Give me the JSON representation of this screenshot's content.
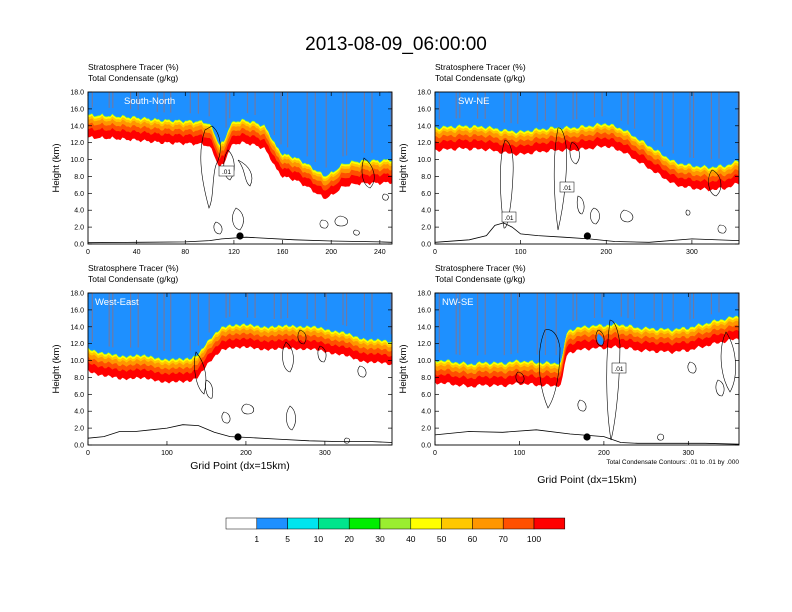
{
  "title": "2013-08-09_06:00:00",
  "subtitle_line1": "Stratosphere Tracer   (%)",
  "subtitle_line2": "Total Condensate   (g/kg)",
  "ylabel": "Height (km)",
  "xlabel": "Grid Point (dx=15km)",
  "contour_note": "Total Condensate Contours: .01 to .01 by .000",
  "contour_label": ".01",
  "colorbar": {
    "levels": [
      "1",
      "5",
      "10",
      "20",
      "30",
      "40",
      "50",
      "60",
      "70",
      "100"
    ],
    "colors": [
      "#ffffff",
      "#1e90ff",
      "#00e5ee",
      "#00e58c",
      "#00ee00",
      "#9aee30",
      "#ffff00",
      "#ffc800",
      "#ff9600",
      "#ff5000",
      "#ff0000"
    ]
  },
  "chart_data": [
    {
      "type": "contour",
      "panel": "South-North",
      "xlim": [
        0,
        250
      ],
      "xticks": [
        "0",
        "40",
        "80",
        "120",
        "160",
        "200",
        "240"
      ],
      "xtick_values": [
        0,
        40,
        80,
        120,
        160,
        200,
        240
      ],
      "ylim": [
        0,
        18
      ],
      "yticks": [
        "0.0",
        "2.0",
        "4.0",
        "6.0",
        "8.0",
        "10.0",
        "12.0",
        "14.0",
        "16.0",
        "18.0"
      ],
      "tropopause_x": [
        0,
        20,
        40,
        60,
        80,
        95,
        100,
        104,
        108,
        112,
        116,
        120,
        126,
        135,
        145,
        150,
        155,
        160,
        170,
        180,
        190,
        195,
        200,
        210,
        220,
        230,
        240,
        250
      ],
      "tropopause_y": [
        15.6,
        15.5,
        15.3,
        15.0,
        14.9,
        14.8,
        14.5,
        13.5,
        12.0,
        12.5,
        14.2,
        14.8,
        15.0,
        14.8,
        14.3,
        13.2,
        11.8,
        11.0,
        10.6,
        9.8,
        8.8,
        8.4,
        8.7,
        9.8,
        10.1,
        10.2,
        10.2,
        10.3
      ],
      "terrain_x": [
        0,
        40,
        80,
        100,
        110,
        130,
        170,
        200,
        240,
        250
      ],
      "terrain_y": [
        0.15,
        0.2,
        0.25,
        0.4,
        0.6,
        0.8,
        0.5,
        0.35,
        0.25,
        0.2
      ],
      "marker_x": 125
    },
    {
      "type": "contour",
      "panel": "SW-NE",
      "xlim": [
        0,
        355
      ],
      "xticks": [
        "0",
        "100",
        "200",
        "300"
      ],
      "xtick_values": [
        0,
        100,
        200,
        300
      ],
      "ylim": [
        0,
        18
      ],
      "yticks": [
        "0.0",
        "2.0",
        "4.0",
        "6.0",
        "8.0",
        "10.0",
        "12.0",
        "14.0",
        "16.0",
        "18.0"
      ],
      "tropopause_x": [
        0,
        30,
        60,
        80,
        100,
        120,
        140,
        160,
        180,
        200,
        220,
        240,
        260,
        280,
        300,
        320,
        340,
        355
      ],
      "tropopause_y": [
        14.1,
        14.3,
        14.2,
        13.8,
        13.6,
        13.9,
        14.1,
        14.1,
        14.3,
        14.6,
        13.9,
        12.6,
        11.3,
        10.0,
        9.6,
        9.4,
        9.6,
        10.2
      ],
      "terrain_x": [
        0,
        40,
        60,
        70,
        80,
        90,
        100,
        120,
        150,
        180,
        210,
        250,
        300,
        355
      ],
      "terrain_y": [
        0.2,
        0.5,
        1.0,
        2.2,
        2.5,
        2.0,
        1.2,
        1.0,
        0.8,
        0.6,
        0.3,
        0.2,
        0.6,
        0.4
      ],
      "marker_x": 178
    },
    {
      "type": "contour",
      "panel": "West-East",
      "xlim": [
        0,
        385
      ],
      "xticks": [
        "0",
        "100",
        "200",
        "300"
      ],
      "xtick_values": [
        0,
        100,
        200,
        300
      ],
      "ylim": [
        0,
        18
      ],
      "yticks": [
        "0.0",
        "2.0",
        "4.0",
        "6.0",
        "8.0",
        "10.0",
        "12.0",
        "14.0",
        "16.0",
        "18.0"
      ],
      "tropopause_x": [
        0,
        20,
        40,
        60,
        80,
        100,
        120,
        130,
        140,
        150,
        160,
        170,
        180,
        200,
        220,
        240,
        260,
        280,
        300,
        320,
        340,
        360,
        385
      ],
      "tropopause_y": [
        11.8,
        11.2,
        10.8,
        11.0,
        10.7,
        10.5,
        10.4,
        10.6,
        11.2,
        12.4,
        13.3,
        14.3,
        14.6,
        14.5,
        14.4,
        14.3,
        14.5,
        14.3,
        14.1,
        13.7,
        13.1,
        12.8,
        12.5
      ],
      "terrain_x": [
        0,
        20,
        40,
        60,
        80,
        100,
        120,
        140,
        160,
        180,
        200,
        240,
        280,
        320,
        360,
        385
      ],
      "terrain_y": [
        0.8,
        1.0,
        1.6,
        1.6,
        1.8,
        2.0,
        2.4,
        2.3,
        1.5,
        1.0,
        0.9,
        0.7,
        0.5,
        0.4,
        0.4,
        0.3
      ],
      "marker_x": 190
    },
    {
      "type": "contour",
      "panel": "NW-SE",
      "xlim": [
        0,
        360
      ],
      "xticks": [
        "0",
        "100",
        "200",
        "300"
      ],
      "xtick_values": [
        0,
        100,
        200,
        300
      ],
      "ylim": [
        0,
        18
      ],
      "yticks": [
        "0.0",
        "2.0",
        "4.0",
        "6.0",
        "8.0",
        "10.0",
        "12.0",
        "14.0",
        "16.0",
        "18.0"
      ],
      "tropopause_x": [
        0,
        20,
        40,
        60,
        80,
        100,
        120,
        140,
        150,
        155,
        160,
        170,
        180,
        200,
        220,
        240,
        260,
        280,
        300,
        320,
        340,
        360
      ],
      "tropopause_y": [
        10.4,
        10.2,
        9.9,
        10.1,
        10.0,
        10.3,
        10.1,
        10.0,
        10.1,
        13.5,
        14.0,
        14.2,
        14.4,
        14.5,
        14.6,
        14.2,
        14.1,
        14.0,
        14.2,
        14.7,
        15.2,
        15.6
      ],
      "terrain_x": [
        0,
        40,
        80,
        120,
        160,
        200,
        220,
        240,
        280,
        320,
        360
      ],
      "terrain_y": [
        1.2,
        1.6,
        1.5,
        1.8,
        1.3,
        1.0,
        0.3,
        0.2,
        0.2,
        0.2,
        0.1
      ],
      "marker_x": 180
    }
  ]
}
